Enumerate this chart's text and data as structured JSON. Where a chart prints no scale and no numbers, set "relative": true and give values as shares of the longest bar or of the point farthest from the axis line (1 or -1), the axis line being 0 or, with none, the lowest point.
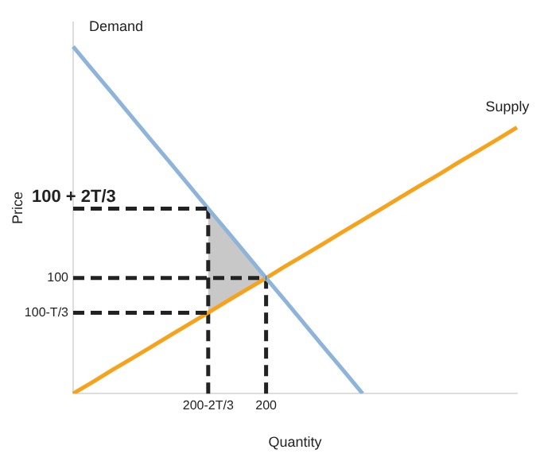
{
  "chart_data": {
    "type": "line",
    "relative": true,
    "xlabel": "Quantity",
    "ylabel": "Price",
    "categories": [
      null,
      null,
      null,
      null,
      null,
      null,
      null,
      "200-2T/3",
      null,
      null,
      "200",
      null,
      null,
      null,
      null,
      null,
      null,
      null,
      null,
      null,
      null,
      null,
      null,
      null
    ],
    "grid": false,
    "legend": false,
    "marker": "none",
    "ref_lines": [
      {
        "axis": "x",
        "value": "200-2T/3",
        "label": null,
        "color": "#222222",
        "line_style": "dashed"
      },
      {
        "axis": "x",
        "value": "200",
        "label": null,
        "color": "#222222",
        "line_style": "dashed"
      }
    ],
    "series": [
      {
        "name": "Demand",
        "color": "#8fb4d9",
        "line_style": "solid",
        "values": [
          1,
          0.933,
          0.867,
          0.8,
          0.733,
          0.667,
          0.6,
          0.533,
          0.467,
          0.4,
          0.333,
          0.267,
          0.2,
          0.133,
          0.067,
          0,
          null,
          null,
          null,
          null,
          null,
          null,
          null,
          null
        ]
      },
      {
        "name": "Supply",
        "color": "#f7a21b",
        "line_style": "solid",
        "values": [
          0,
          0.033,
          0.067,
          0.1,
          0.133,
          0.167,
          0.2,
          0.233,
          0.267,
          0.3,
          0.333,
          0.367,
          0.4,
          0.433,
          0.467,
          0.5,
          0.533,
          0.567,
          0.6,
          0.633,
          0.667,
          0.7,
          0.733,
          0.767
        ]
      },
      {
        "name": "100 + 2T/3",
        "color": "#222222",
        "line_style": "dashed",
        "values": [
          0.533,
          0.533,
          0.533,
          0.533,
          0.533,
          0.533,
          0.533,
          0.533,
          null,
          null,
          null,
          null,
          null,
          null,
          null,
          null,
          null,
          null,
          null,
          null,
          null,
          null,
          null,
          null
        ]
      },
      {
        "name": "100",
        "color": "#222222",
        "line_style": "dashed",
        "values": [
          0.333,
          0.333,
          0.333,
          0.333,
          0.333,
          0.333,
          0.333,
          0.333,
          0.333,
          0.333,
          0.333,
          null,
          null,
          null,
          null,
          null,
          null,
          null,
          null,
          null,
          null,
          null,
          null,
          null
        ]
      },
      {
        "name": "100-T/3",
        "color": "#222222",
        "line_style": "dashed",
        "values": [
          0.233,
          0.233,
          0.233,
          0.233,
          0.233,
          0.233,
          0.233,
          0.233,
          null,
          null,
          null,
          null,
          null,
          null,
          null,
          null,
          null,
          null,
          null,
          null,
          null,
          null,
          null,
          null
        ]
      }
    ]
  }
}
